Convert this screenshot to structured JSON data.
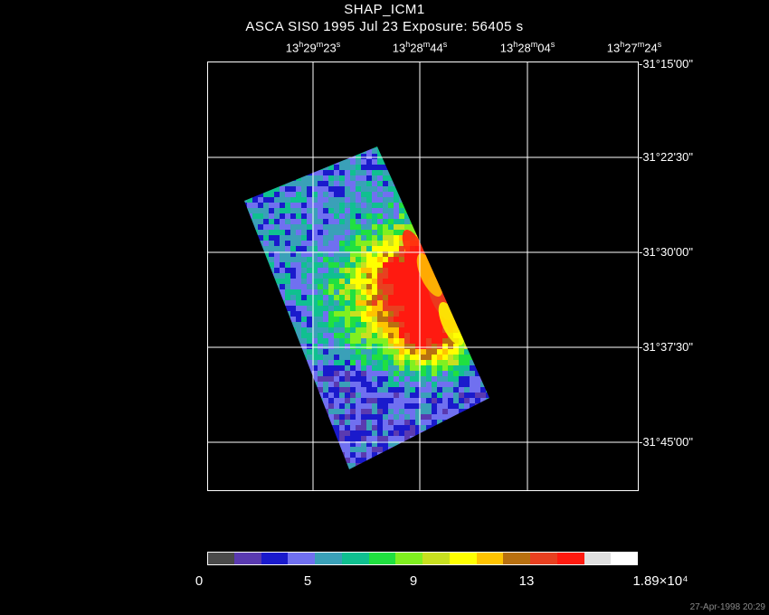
{
  "header": {
    "title": "SHAP_ICM1",
    "subtitle": "ASCA SIS0   1995 Jul 23    Exposure: 56405 s"
  },
  "ra_ticks": [
    {
      "h": "13",
      "m": "29",
      "s": "23"
    },
    {
      "h": "13",
      "m": "28",
      "s": "44"
    },
    {
      "h": "13",
      "m": "28",
      "s": "04"
    },
    {
      "h": "13",
      "m": "27",
      "s": "24"
    }
  ],
  "dec_ticks": [
    "-31°15'00\"",
    "-31°22'30\"",
    "-31°30'00\"",
    "-31°37'30\"",
    "-31°45'00\""
  ],
  "colorbar": {
    "colors": [
      "#4a4a4a",
      "#5a3ab0",
      "#1a1acc",
      "#7070f0",
      "#3aa0b8",
      "#10c090",
      "#20e040",
      "#80f020",
      "#c8e020",
      "#ffff00",
      "#ffc400",
      "#b87010",
      "#e84020",
      "#ff1a10",
      "#e0e0e0",
      "#ffffff"
    ],
    "labels": [
      "0",
      "5",
      "9",
      "13",
      "1.89×10⁴"
    ]
  },
  "footer": {
    "timestamp": "27-Apr-1998 20:29"
  }
}
